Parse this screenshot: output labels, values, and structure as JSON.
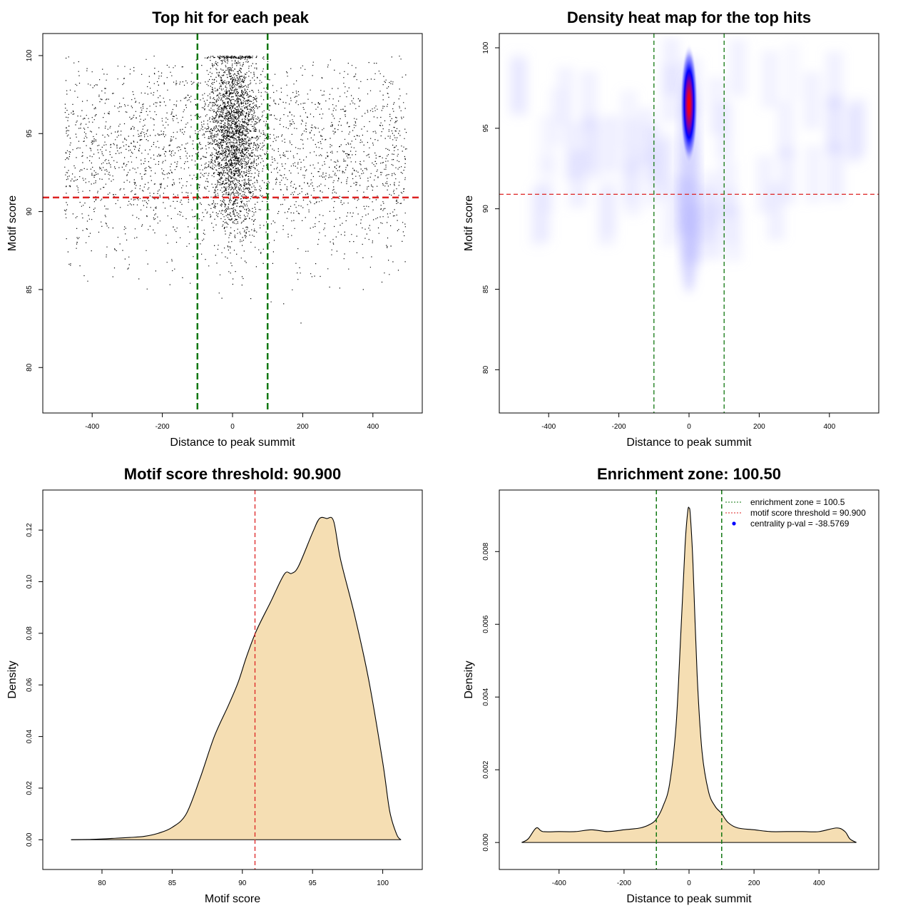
{
  "chart_data": [
    {
      "type": "scatter",
      "title": "Top hit for each peak",
      "xlabel": "Distance to peak summit",
      "ylabel": "Motif score",
      "xlim": [
        -500,
        500
      ],
      "ylim": [
        78,
        100.5
      ],
      "xticks": [
        "-400",
        "-200",
        "0",
        "200",
        "400"
      ],
      "yticks": [
        "80",
        "85",
        "90",
        "95",
        "100"
      ],
      "hlines": [
        {
          "y": 90.9,
          "color": "#dd2222",
          "style": "dashed"
        }
      ],
      "vlines": [
        {
          "x": -100,
          "color": "#117711",
          "style": "dashed"
        },
        {
          "x": 100,
          "color": "#117711",
          "style": "dashed"
        }
      ],
      "point_distribution": {
        "background": {
          "x_range": [
            -480,
            495
          ],
          "score_center": 93.5,
          "score_sd": 3.2,
          "approx_count": 2600
        },
        "central": {
          "x_center": 0,
          "x_sd": 35,
          "score_center": 95,
          "score_sd": 3.0,
          "approx_count": 5500
        }
      }
    },
    {
      "type": "heatmap",
      "title": "Density heat map for the top hits",
      "xlabel": "Distance to peak summit",
      "ylabel": "Motif score",
      "xlim": [
        -500,
        500
      ],
      "ylim": [
        78.2,
        100
      ],
      "xticks": [
        "-400",
        "-200",
        "0",
        "200",
        "400"
      ],
      "yticks": [
        "80",
        "85",
        "90",
        "95",
        "100"
      ],
      "hlines": [
        {
          "y": 90.9,
          "color": "#dd2222",
          "style": "dashed"
        }
      ],
      "vlines": [
        {
          "x": -100,
          "color": "#117711",
          "style": "dashed"
        },
        {
          "x": 100,
          "color": "#117711",
          "style": "dashed"
        }
      ],
      "hotspot": {
        "x": 0,
        "y": 96.5,
        "x_spread": 18,
        "y_spread": 2.8
      },
      "color_scale": [
        "#ffffff",
        "#0000ff",
        "#ff0000"
      ]
    },
    {
      "type": "area",
      "title": "Motif score threshold: 90.900",
      "xlabel": "Motif score",
      "ylabel": "Density",
      "xlim": [
        76.8,
        101.8
      ],
      "ylim": [
        -0.006,
        0.13
      ],
      "xticks": [
        "80",
        "85",
        "90",
        "95",
        "100"
      ],
      "yticks": [
        "0.00",
        "0.02",
        "0.04",
        "0.06",
        "0.08",
        "0.10",
        "0.12"
      ],
      "fill": "#f5deb3",
      "vlines": [
        {
          "x": 90.9,
          "color": "#dd2222",
          "style": "dashed"
        }
      ],
      "x": [
        77.8,
        79,
        80,
        81,
        82,
        83,
        84,
        85,
        86,
        87,
        88,
        89,
        89.7,
        90.3,
        91,
        92,
        93,
        93.5,
        94,
        95,
        95.5,
        96,
        96.5,
        97,
        98,
        99,
        100,
        100.5,
        101,
        101.3
      ],
      "values": [
        0.0,
        0.0001,
        0.0003,
        0.0006,
        0.0009,
        0.0013,
        0.0025,
        0.0048,
        0.01,
        0.024,
        0.04,
        0.052,
        0.061,
        0.071,
        0.081,
        0.092,
        0.103,
        0.1032,
        0.106,
        0.119,
        0.1245,
        0.1245,
        0.1235,
        0.1085,
        0.087,
        0.062,
        0.03,
        0.011,
        0.002,
        0.0
      ]
    },
    {
      "type": "area",
      "title": "Enrichment zone: 100.50",
      "xlabel": "Distance to peak summit",
      "ylabel": "Density",
      "xlim": [
        -540,
        540
      ],
      "ylim": [
        -0.00035,
        0.0093
      ],
      "xticks": [
        "-400",
        "-200",
        "0",
        "200",
        "400"
      ],
      "yticks": [
        "0.000",
        "0.002",
        "0.004",
        "0.006",
        "0.008"
      ],
      "fill": "#f5deb3",
      "vlines": [
        {
          "x": -100.5,
          "color": "#117711",
          "style": "dashed"
        },
        {
          "x": 100.5,
          "color": "#117711",
          "style": "dashed"
        }
      ],
      "x": [
        -515,
        -495,
        -470,
        -450,
        -400,
        -350,
        -300,
        -250,
        -200,
        -150,
        -120,
        -100,
        -80,
        -60,
        -40,
        -25,
        -12,
        -4,
        0,
        4,
        12,
        25,
        40,
        60,
        80,
        100,
        120,
        150,
        200,
        250,
        300,
        350,
        400,
        455,
        480,
        495,
        515
      ],
      "values": [
        0.0,
        0.0001,
        0.0004,
        0.0003,
        0.0003,
        0.0003,
        0.00035,
        0.0003,
        0.00035,
        0.0004,
        0.0005,
        0.00065,
        0.001,
        0.0016,
        0.0032,
        0.0058,
        0.0082,
        0.0091,
        0.0092,
        0.009,
        0.0077,
        0.0046,
        0.0025,
        0.0014,
        0.001,
        0.0008,
        0.00055,
        0.0004,
        0.00035,
        0.0003,
        0.0003,
        0.0003,
        0.0003,
        0.0004,
        0.0003,
        0.0001,
        0.0
      ],
      "legend": {
        "position": "top-right",
        "entries": [
          {
            "label": "enrichment zone = 100.5",
            "color": "#117711",
            "kind": "dotted-line"
          },
          {
            "label": "motif score threshold = 90.900",
            "color": "#dd2222",
            "kind": "dotted-line"
          },
          {
            "label": "centrality p-val = -38.5769",
            "color": "#0000ff",
            "kind": "point"
          }
        ]
      }
    }
  ]
}
